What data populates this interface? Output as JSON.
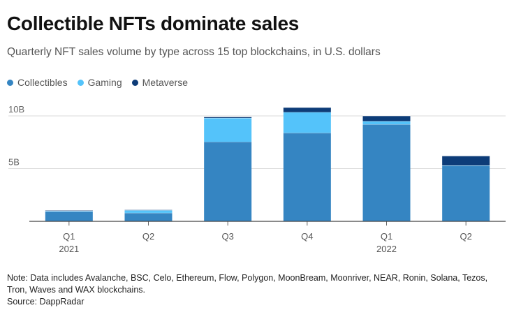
{
  "title": "Collectible NFTs dominate sales",
  "subtitle": "Quarterly NFT sales volume by type across 15 top blockchains, in U.S. dollars",
  "note": "Note: Data includes Avalanche, BSC, Celo, Ethereum, Flow, Polygon, MoonBream, Moonriver, NEAR, Ronin, Solana, Tezos, Tron, Waves and WAX blockchains.",
  "source": "Source: DappRadar",
  "colors": {
    "Collectibles": "#3585c2",
    "Gaming": "#54c3fa",
    "Metaverse": "#0d3c78"
  },
  "chart_data": {
    "type": "bar",
    "stacked": true,
    "categories": [
      "Q1",
      "Q2",
      "Q3",
      "Q4",
      "Q1",
      "Q2"
    ],
    "category_years": [
      "2021",
      "",
      "",
      "",
      "2022",
      ""
    ],
    "series": [
      {
        "name": "Collectibles",
        "values": [
          0.95,
          0.8,
          7.55,
          8.4,
          9.2,
          5.25
        ]
      },
      {
        "name": "Gaming",
        "values": [
          0.05,
          0.25,
          2.25,
          1.95,
          0.3,
          0.05
        ]
      },
      {
        "name": "Metaverse",
        "values": [
          0.05,
          0.05,
          0.1,
          0.45,
          0.5,
          0.9
        ]
      }
    ],
    "yticks": [
      5,
      10
    ],
    "ytick_labels": [
      "5B",
      "10B"
    ],
    "ylim": [
      0,
      11
    ],
    "ylabel": "",
    "xlabel": "",
    "legend_position": "top-left",
    "grid": true
  }
}
